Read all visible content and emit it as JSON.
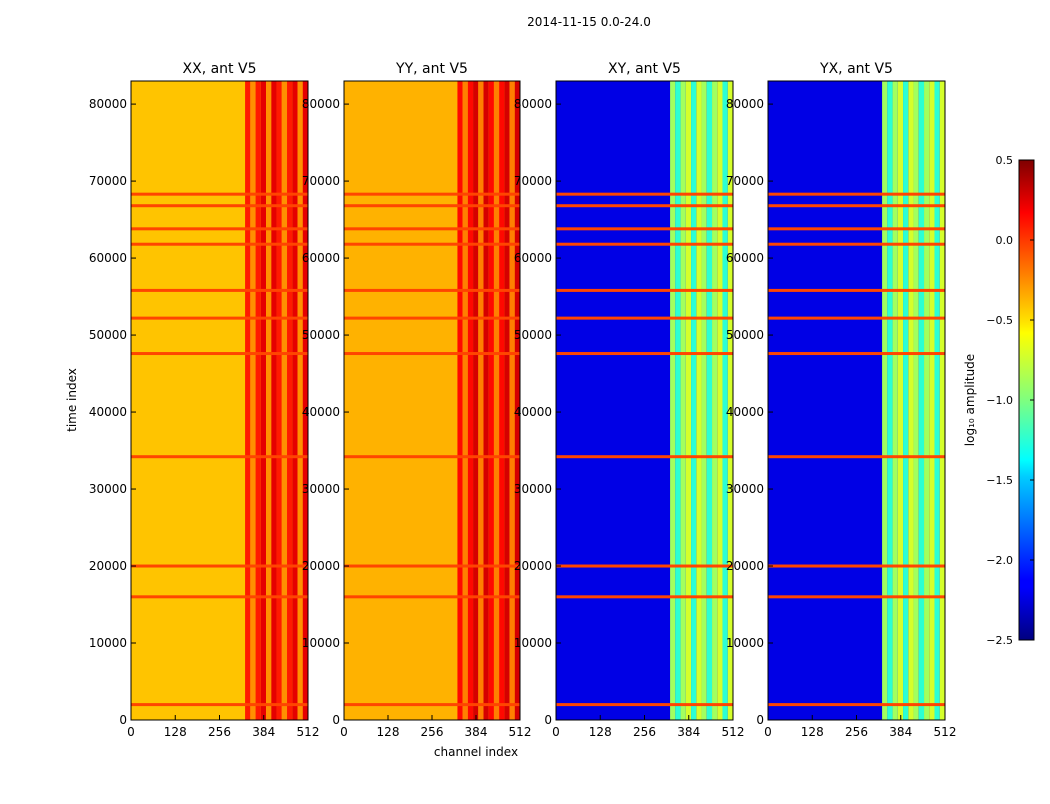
{
  "figure": {
    "suptitle": "2014-11-15 0.0-24.0"
  },
  "chart_data": {
    "type": "heatmap",
    "ylabel": "time index",
    "xlabel": "channel index",
    "x_range": [
      0,
      512
    ],
    "y_range": [
      0,
      83000
    ],
    "x_ticks": [
      "0",
      "128",
      "256",
      "384",
      "512"
    ],
    "x_tick_values": [
      0,
      128,
      256,
      384,
      512
    ],
    "y_ticks": [
      "0",
      "10000",
      "20000",
      "30000",
      "40000",
      "50000",
      "60000",
      "70000",
      "80000"
    ],
    "y_tick_values": [
      0,
      10000,
      20000,
      30000,
      40000,
      50000,
      60000,
      70000,
      80000
    ],
    "panels": [
      {
        "title": "XX, ant V5",
        "base_level": -0.45,
        "band_level": 0.05
      },
      {
        "title": "YY, ant V5",
        "base_level": -0.4,
        "band_level": 0.1
      },
      {
        "title": "XY, ant V5",
        "base_level": -2.2,
        "band_level": -0.9
      },
      {
        "title": "YX, ant V5",
        "base_level": -2.2,
        "band_level": -0.9
      }
    ],
    "rfi_band_channels": [
      330,
      512
    ],
    "flagged_time_rows": [
      2000,
      16000,
      20000,
      34200,
      47600,
      52200,
      55800,
      61800,
      63800,
      66800,
      68300
    ],
    "colorbar": {
      "label": "log₁₀ amplitude",
      "range": [
        -2.5,
        0.5
      ],
      "ticks": [
        "0.5",
        "0.0",
        "−0.5",
        "−1.0",
        "−1.5",
        "−2.0",
        "−2.5"
      ],
      "tick_values": [
        0.5,
        0.0,
        -0.5,
        -1.0,
        -1.5,
        -2.0,
        -2.5
      ],
      "colormap": "jet"
    }
  }
}
